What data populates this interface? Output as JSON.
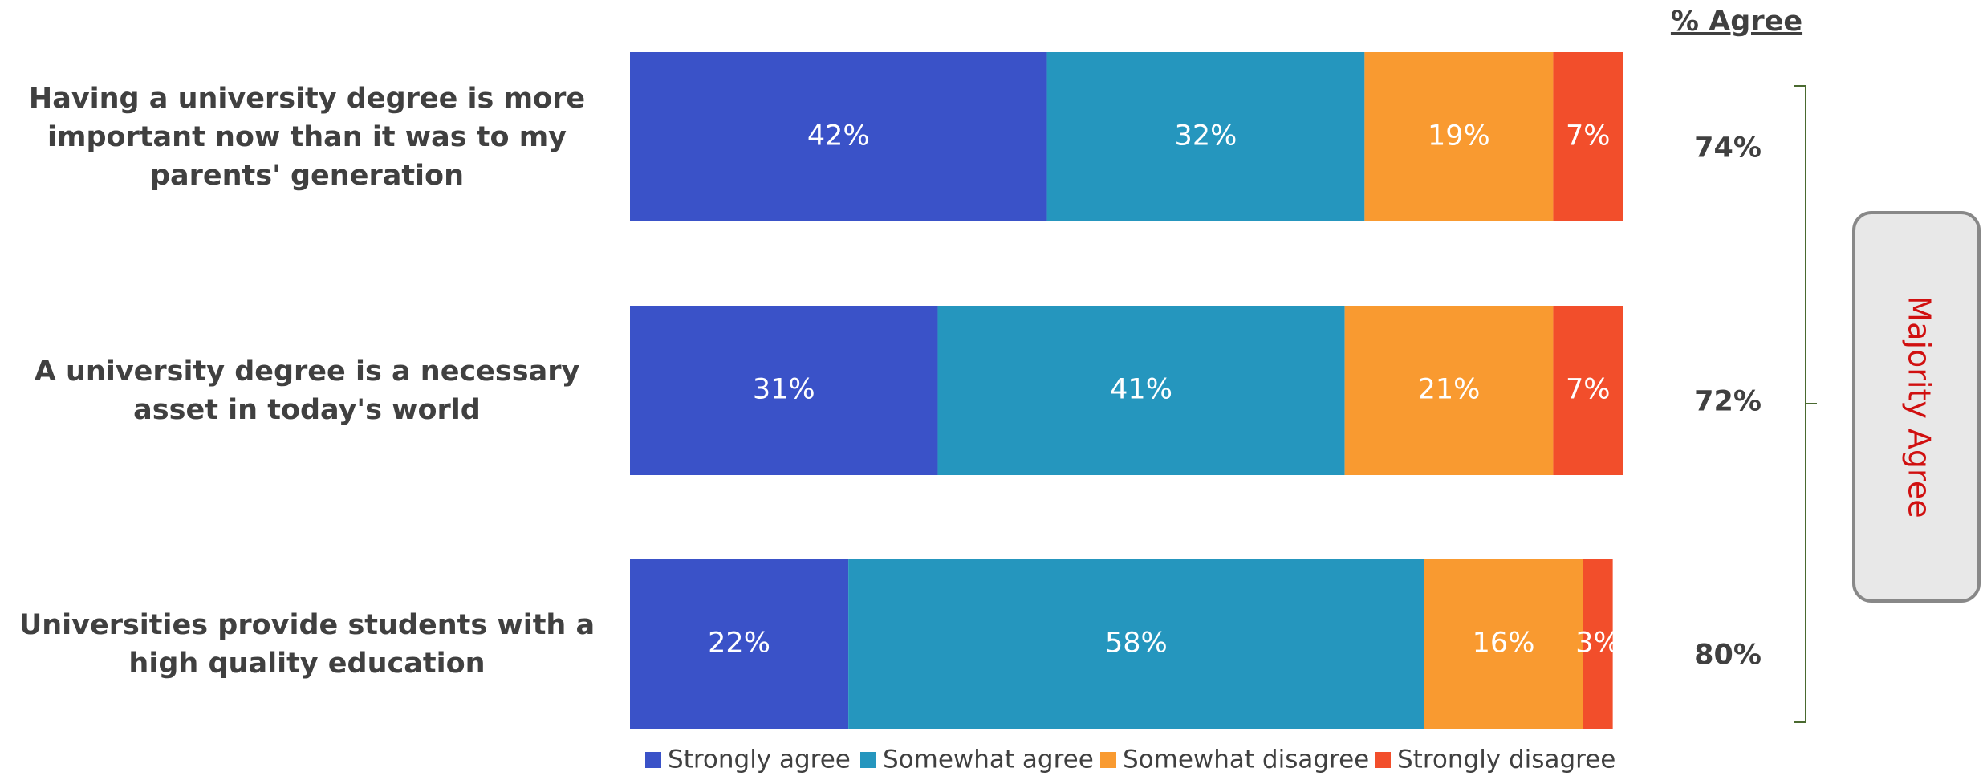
{
  "chart_data": {
    "type": "bar",
    "orientation": "horizontal",
    "stacked": true,
    "categories": [
      "Having a university degree is more important now than it was to my parents' generation",
      "A university degree is a necessary asset in today's world",
      "Universities provide students with a high quality education"
    ],
    "series": [
      {
        "name": "Strongly agree",
        "color": "#3a52c8",
        "values": [
          42,
          31,
          22
        ],
        "value_labels": [
          "42%",
          "31%",
          "22%"
        ]
      },
      {
        "name": "Somewhat agree",
        "color": "#2596be",
        "values": [
          32,
          41,
          58
        ],
        "value_labels": [
          "32%",
          "41%",
          "58%"
        ]
      },
      {
        "name": "Somewhat disagree",
        "color": "#f99a30",
        "values": [
          19,
          21,
          16
        ],
        "value_labels": [
          "19%",
          "21%",
          "16%"
        ]
      },
      {
        "name": "Strongly disagree",
        "color": "#f24e2b",
        "values": [
          7,
          7,
          3
        ],
        "value_labels": [
          "7%",
          "7%",
          "3%"
        ]
      }
    ],
    "xlim": [
      0,
      100
    ],
    "agree_header": "% Agree",
    "agree_values": [
      74,
      72,
      80
    ],
    "agree_labels": [
      "74%",
      "72%",
      "80%"
    ],
    "annotation": "Majority Agree",
    "legend": "bottom"
  }
}
